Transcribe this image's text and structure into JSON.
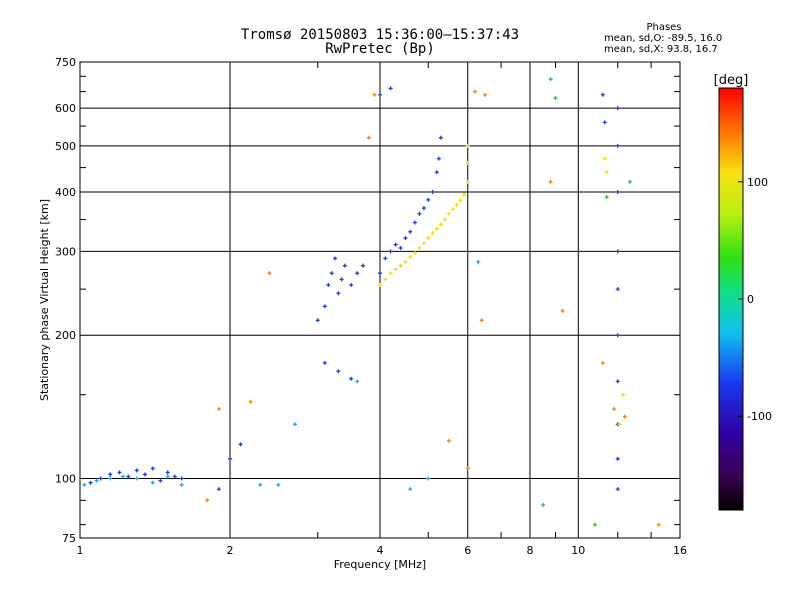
{
  "title_line1": "Tromsø 20150803 15:36:00–15:37:43",
  "title_line2": "RwPretec (Bp)",
  "phases": {
    "heading": "Phases",
    "o_label": "mean, sd,O:",
    "o_values": "-89.5, 16.0",
    "x_label": "mean, sd,X:",
    "x_values": "93.8, 16.7"
  },
  "colors": {
    "o_mode": "#1f3fe0",
    "x_mode": "#f0e010",
    "grid": "#000000"
  },
  "chart_data": {
    "type": "scatter",
    "title": "Tromsø 20150803 15:36:00–15:37:43",
    "subtitle": "RwPretec (Bp)",
    "xlabel": "Frequency [MHz]",
    "ylabel": "Stationary phase Virtual Height [km]",
    "xscale": "log",
    "yscale": "log",
    "xlim": [
      1,
      16
    ],
    "ylim": [
      75,
      750
    ],
    "xticks": [
      1,
      2,
      4,
      6,
      8,
      10,
      16
    ],
    "yticks": [
      75,
      100,
      200,
      300,
      400,
      500,
      600,
      750
    ],
    "colorbar": {
      "label": "[deg]",
      "range": [
        -180,
        180
      ],
      "ticks": [
        100,
        0,
        -100
      ]
    },
    "series": [
      {
        "name": "O-mode trace",
        "color": "#1f3fe0",
        "points": [
          [
            1.05,
            98
          ],
          [
            1.1,
            100
          ],
          [
            1.15,
            102
          ],
          [
            1.2,
            103
          ],
          [
            1.25,
            101
          ],
          [
            1.3,
            104
          ],
          [
            1.35,
            102
          ],
          [
            1.4,
            105
          ],
          [
            1.45,
            99
          ],
          [
            1.5,
            103
          ],
          [
            1.55,
            101
          ],
          [
            1.6,
            100
          ],
          [
            1.9,
            95
          ],
          [
            2.0,
            110
          ],
          [
            2.1,
            118
          ],
          [
            3.0,
            215
          ],
          [
            3.1,
            230
          ],
          [
            3.15,
            255
          ],
          [
            3.2,
            270
          ],
          [
            3.25,
            290
          ],
          [
            3.3,
            245
          ],
          [
            3.35,
            262
          ],
          [
            3.4,
            280
          ],
          [
            3.5,
            255
          ],
          [
            3.6,
            270
          ],
          [
            3.7,
            280
          ],
          [
            3.1,
            175
          ],
          [
            3.3,
            168
          ],
          [
            3.5,
            162
          ],
          [
            4.0,
            270
          ],
          [
            4.1,
            290
          ],
          [
            4.2,
            300
          ],
          [
            4.3,
            310
          ],
          [
            4.4,
            305
          ],
          [
            4.5,
            320
          ],
          [
            4.6,
            330
          ],
          [
            4.7,
            345
          ],
          [
            4.8,
            360
          ],
          [
            4.9,
            370
          ],
          [
            5.0,
            385
          ],
          [
            5.1,
            400
          ],
          [
            5.2,
            440
          ],
          [
            5.25,
            470
          ],
          [
            5.3,
            520
          ],
          [
            4.0,
            640
          ],
          [
            4.2,
            660
          ],
          [
            12.0,
            600
          ],
          [
            12.0,
            500
          ],
          [
            12.0,
            400
          ],
          [
            12.0,
            300
          ],
          [
            12.0,
            250
          ],
          [
            12.0,
            200
          ],
          [
            12.0,
            160
          ],
          [
            12.0,
            130
          ],
          [
            12.0,
            110
          ],
          [
            12.0,
            95
          ],
          [
            11.2,
            640
          ],
          [
            11.3,
            560
          ]
        ]
      },
      {
        "name": "X-mode trace",
        "color": "#f0e010",
        "points": [
          [
            4.0,
            255
          ],
          [
            4.1,
            262
          ],
          [
            4.2,
            270
          ],
          [
            4.3,
            275
          ],
          [
            4.4,
            280
          ],
          [
            4.5,
            285
          ],
          [
            4.6,
            292
          ],
          [
            4.7,
            298
          ],
          [
            4.8,
            305
          ],
          [
            4.9,
            312
          ],
          [
            5.0,
            320
          ],
          [
            5.1,
            328
          ],
          [
            5.2,
            335
          ],
          [
            5.3,
            342
          ],
          [
            5.4,
            350
          ],
          [
            5.5,
            360
          ],
          [
            5.6,
            368
          ],
          [
            5.7,
            376
          ],
          [
            5.8,
            384
          ],
          [
            5.9,
            395
          ],
          [
            6.0,
            420
          ],
          [
            6.0,
            460
          ],
          [
            6.0,
            500
          ],
          [
            11.3,
            470
          ],
          [
            11.4,
            440
          ],
          [
            12.1,
            130
          ],
          [
            12.3,
            150
          ]
        ]
      },
      {
        "name": "Low-altitude cyan echoes",
        "color": "#2aa8e0",
        "points": [
          [
            1.02,
            97
          ],
          [
            1.08,
            99
          ],
          [
            1.15,
            100
          ],
          [
            1.22,
            101
          ],
          [
            1.3,
            100
          ],
          [
            1.4,
            98
          ],
          [
            1.5,
            101
          ],
          [
            1.6,
            97
          ],
          [
            2.3,
            97
          ],
          [
            2.5,
            97
          ],
          [
            2.7,
            130
          ],
          [
            3.6,
            160
          ],
          [
            4.6,
            95
          ],
          [
            5.0,
            100
          ],
          [
            6.3,
            285
          ]
        ]
      },
      {
        "name": "Scattered orange/red points",
        "color": "#ff8000",
        "points": [
          [
            1.8,
            90
          ],
          [
            1.9,
            140
          ],
          [
            2.2,
            145
          ],
          [
            2.4,
            270
          ],
          [
            3.8,
            520
          ],
          [
            3.9,
            640
          ],
          [
            6.2,
            650
          ],
          [
            6.5,
            640
          ],
          [
            6.4,
            215
          ],
          [
            5.5,
            120
          ],
          [
            6.0,
            105
          ],
          [
            8.8,
            420
          ],
          [
            9.3,
            225
          ],
          [
            11.2,
            175
          ],
          [
            11.8,
            140
          ],
          [
            12.4,
            135
          ],
          [
            14.5,
            80
          ]
        ]
      },
      {
        "name": "Scattered green points",
        "color": "#2cc040",
        "points": [
          [
            8.8,
            690
          ],
          [
            9.0,
            630
          ],
          [
            11.4,
            390
          ],
          [
            12.7,
            420
          ],
          [
            8.5,
            88
          ],
          [
            10.8,
            80
          ]
        ]
      }
    ]
  }
}
